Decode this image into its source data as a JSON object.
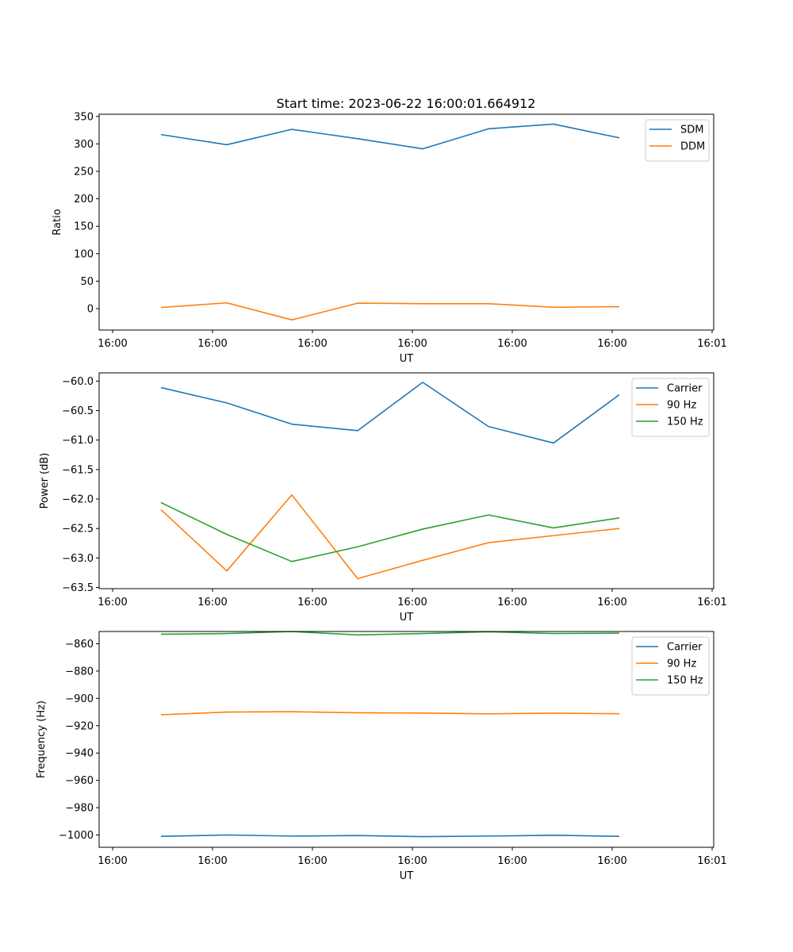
{
  "title": "Start time: 2023-06-22 16:00:01.664912",
  "chart_data": [
    {
      "type": "line",
      "xlabel": "UT",
      "ylabel": "Ratio",
      "x_tick_labels": [
        "16:00",
        "16:00",
        "16:00",
        "16:00",
        "16:00",
        "16:00",
        "16:01"
      ],
      "y_ticks": [
        0,
        50,
        100,
        150,
        200,
        250,
        300,
        350
      ],
      "ylim": [
        -39,
        354
      ],
      "grid": false,
      "legend": "top-right",
      "series": [
        {
          "name": "SDM",
          "color": "#1f77b4",
          "values": [
            317,
            298.5,
            326.5,
            309.5,
            291,
            327.5,
            336,
            311
          ]
        },
        {
          "name": "DDM",
          "color": "#ff7f0e",
          "values": [
            2,
            10.5,
            -20.5,
            10,
            9,
            9,
            2.5,
            3.5
          ]
        }
      ]
    },
    {
      "type": "line",
      "xlabel": "UT",
      "ylabel": "Power (dB)",
      "x_tick_labels": [
        "16:00",
        "16:00",
        "16:00",
        "16:00",
        "16:00",
        "16:00",
        "16:01"
      ],
      "y_ticks": [
        -60.0,
        -60.5,
        -61.0,
        -61.5,
        -62.0,
        -62.5,
        -63.0,
        -63.5
      ],
      "y_tick_labels": [
        "−60.0",
        "−60.5",
        "−61.0",
        "−61.5",
        "−62.0",
        "−62.5",
        "−63.0",
        "−63.5"
      ],
      "ylim": [
        -63.52,
        -59.86
      ],
      "grid": false,
      "legend": "top-right",
      "series": [
        {
          "name": "Carrier",
          "color": "#1f77b4",
          "values": [
            -60.11,
            -60.37,
            -60.73,
            -60.84,
            -60.02,
            -60.77,
            -61.05,
            -60.23
          ]
        },
        {
          "name": "90 Hz",
          "color": "#ff7f0e",
          "values": [
            -62.18,
            -63.22,
            -61.93,
            -63.35,
            -63.04,
            -62.74,
            -62.62,
            -62.5
          ]
        },
        {
          "name": "150 Hz",
          "color": "#2ca02c",
          "values": [
            -62.06,
            -62.6,
            -63.06,
            -62.81,
            -62.51,
            -62.27,
            -62.49,
            -62.32
          ]
        }
      ]
    },
    {
      "type": "line",
      "xlabel": "UT",
      "ylabel": "Frequency (Hz)",
      "x_tick_labels": [
        "16:00",
        "16:00",
        "16:00",
        "16:00",
        "16:00",
        "16:00",
        "16:01"
      ],
      "y_ticks": [
        -860,
        -880,
        -900,
        -920,
        -940,
        -960,
        -980,
        -1000
      ],
      "y_tick_labels": [
        "−860",
        "−880",
        "−900",
        "−920",
        "−940",
        "−960",
        "−980",
        "−1000"
      ],
      "ylim": [
        -1009,
        -851
      ],
      "grid": false,
      "legend": "top-right",
      "series": [
        {
          "name": "Carrier",
          "color": "#1f77b4",
          "values": [
            -1001,
            -1000,
            -1000.8,
            -1000.4,
            -1001.2,
            -1000.8,
            -1000.2,
            -1001
          ]
        },
        {
          "name": "90 Hz",
          "color": "#ff7f0e",
          "values": [
            -912,
            -910,
            -909.7,
            -910.5,
            -910.7,
            -911.3,
            -910.8,
            -911.2
          ]
        },
        {
          "name": "150 Hz",
          "color": "#2ca02c",
          "values": [
            -853,
            -852.5,
            -851,
            -853.5,
            -852.5,
            -851.2,
            -852.5,
            -852.2
          ]
        }
      ]
    }
  ]
}
